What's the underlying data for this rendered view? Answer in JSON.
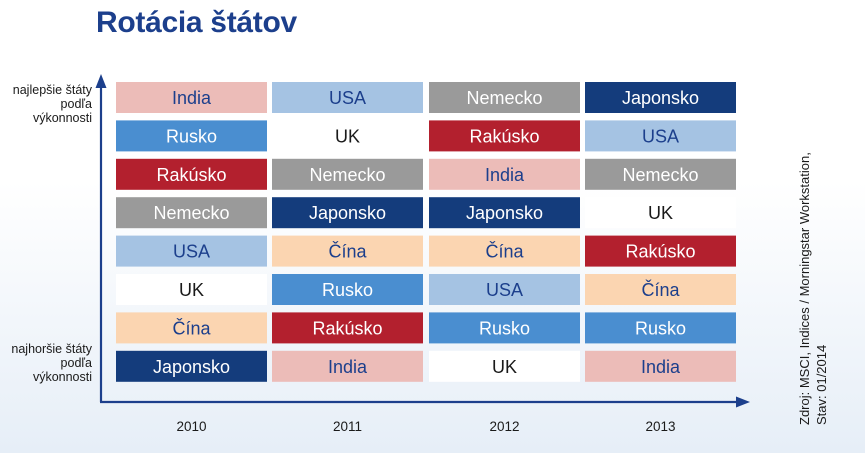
{
  "title": "Rotácia štátov",
  "y_label_top": "najlepšie štáty podľa výkonnosti",
  "y_label_bottom": "najhoršie štáty podľa výkonnosti",
  "source_line1": "Zdroj: MSCI, Indices / Morningstar Workstation,",
  "source_line2": "Stav: 01/2014",
  "colors": {
    "India": "#ecbcb8",
    "USA": "#a5c3e3",
    "Nemecko": "#9a9a9a",
    "Japonsko": "#143c7c",
    "Rusko": "#4a8ed0",
    "UK": "#ffffff",
    "Rakúsko": "#b3202e",
    "Čína": "#fbd5b1"
  },
  "text_colors": {
    "India": "#1c3f8c",
    "USA": "#1c3f8c",
    "Nemecko": "#ffffff",
    "Japonsko": "#ffffff",
    "Rusko": "#ffffff",
    "UK": "#1a1a1a",
    "Rakúsko": "#ffffff",
    "Čína": "#1c3f8c"
  },
  "chart_data": {
    "type": "table",
    "title": "Rotácia štátov",
    "categories": [
      "2010",
      "2011",
      "2012",
      "2013"
    ],
    "rank_order": "top = best performing, bottom = worst performing",
    "columns": [
      {
        "year": "2010",
        "ranking": [
          "India",
          "Rusko",
          "Rakúsko",
          "Nemecko",
          "USA",
          "UK",
          "Čína",
          "Japonsko"
        ]
      },
      {
        "year": "2011",
        "ranking": [
          "USA",
          "UK",
          "Nemecko",
          "Japonsko",
          "Čína",
          "Rusko",
          "Rakúsko",
          "India"
        ]
      },
      {
        "year": "2012",
        "ranking": [
          "Nemecko",
          "Rakúsko",
          "India",
          "Japonsko",
          "Čína",
          "USA",
          "Rusko",
          "UK"
        ]
      },
      {
        "year": "2013",
        "ranking": [
          "Japonsko",
          "USA",
          "Nemecko",
          "UK",
          "Rakúsko",
          "Čína",
          "Rusko",
          "India"
        ]
      }
    ]
  }
}
